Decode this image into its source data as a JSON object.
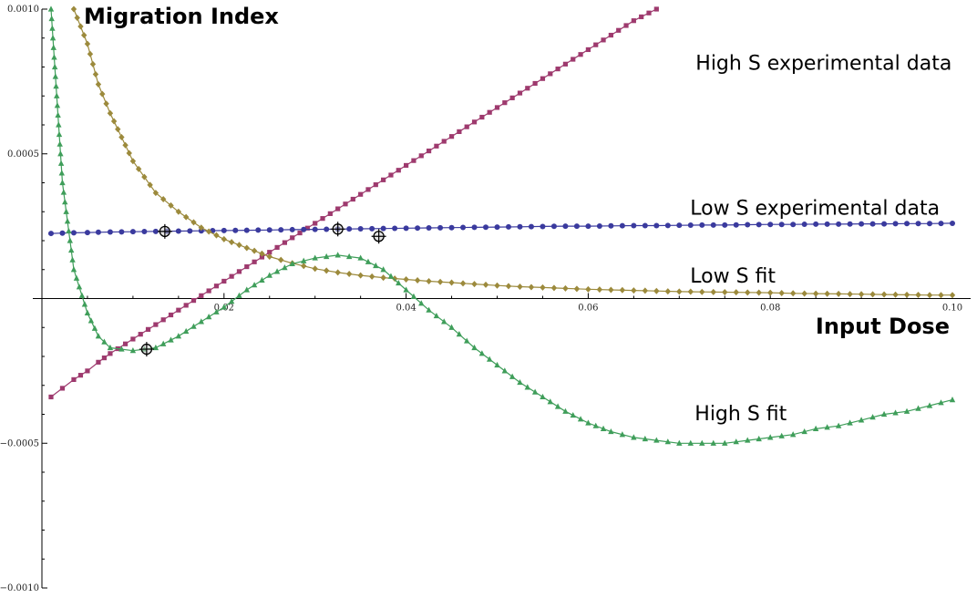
{
  "chart_data": {
    "type": "line",
    "ylabel": "Migration Index",
    "xlabel": "Input Dose",
    "xlim": [
      0.0,
      0.1
    ],
    "ylim": [
      -0.001,
      0.001
    ],
    "x_ticks": [
      0.02,
      0.04,
      0.06,
      0.08,
      0.1
    ],
    "x_tick_labels": [
      "0.02",
      "0.04",
      "0.06",
      "0.08",
      "0.10"
    ],
    "y_ticks": [
      -0.001,
      -0.0005,
      0.0005,
      0.001
    ],
    "y_tick_labels": [
      "−0.0010",
      "−0.0005",
      "0.0005",
      "0.0010"
    ],
    "grid": false,
    "x": [
      0.001,
      0.00225,
      0.0035,
      0.005,
      0.0062,
      0.0075,
      0.01,
      0.0125,
      0.015,
      0.0175,
      0.02,
      0.0225,
      0.025,
      0.0275,
      0.03,
      0.0325,
      0.035,
      0.0375,
      0.04,
      0.0425,
      0.045,
      0.0475,
      0.05,
      0.0525,
      0.055,
      0.0575,
      0.06,
      0.0625,
      0.065,
      0.0675,
      0.07,
      0.0725,
      0.075,
      0.0775,
      0.08,
      0.0825,
      0.085,
      0.0875,
      0.09,
      0.0925,
      0.095,
      0.0975,
      0.1
    ],
    "series": [
      {
        "name": "High S experimental data",
        "color": "#9e3a6e",
        "marker": "square",
        "values": [
          -0.00034,
          -0.00031,
          -0.00028,
          -0.00025,
          -0.00022,
          -0.00019,
          -0.00014,
          -9e-05,
          -4e-05,
          1e-05,
          6e-05,
          0.00011,
          0.00016,
          0.00021,
          0.00026,
          0.00031,
          0.00036,
          0.00041,
          0.00046,
          0.00051,
          0.00056,
          0.00061,
          0.00066,
          0.00071,
          0.00076,
          0.00081,
          0.00086,
          0.00091,
          0.00096,
          0.001,
          null,
          null,
          null,
          null,
          null,
          null,
          null,
          null,
          null,
          null,
          null,
          null,
          null
        ]
      },
      {
        "name": "Low S experimental data",
        "color": "#3a3a9e",
        "marker": "circle",
        "values": [
          0.000225,
          0.000226,
          0.000227,
          0.000228,
          0.000229,
          0.00023,
          0.000231,
          0.000232,
          0.000233,
          0.000234,
          0.000235,
          0.000236,
          0.000237,
          0.000238,
          0.000239,
          0.00024,
          0.000241,
          0.000242,
          0.000243,
          0.000244,
          0.000245,
          0.000246,
          0.000247,
          0.000248,
          0.000249,
          0.00025,
          0.00025,
          0.000251,
          0.000252,
          0.000252,
          0.000253,
          0.000254,
          0.000254,
          0.000255,
          0.000256,
          0.000256,
          0.000257,
          0.000257,
          0.000258,
          0.000258,
          0.000259,
          0.000259,
          0.00026
        ]
      },
      {
        "name": "Low S fit",
        "color": "#9c8a3c",
        "marker": "diamond",
        "values": [
          null,
          null,
          0.001,
          0.00088,
          0.00074,
          0.00064,
          0.000475,
          0.000365,
          0.0003,
          0.000245,
          0.000205,
          0.000175,
          0.000145,
          0.000122,
          0.000103,
          9e-05,
          8e-05,
          7.2e-05,
          6.6e-05,
          6e-05,
          5.5e-05,
          5e-05,
          4.5e-05,
          4.1e-05,
          3.8e-05,
          3.5e-05,
          3.2e-05,
          3e-05,
          2.8e-05,
          2.6e-05,
          2.4e-05,
          2.3e-05,
          2.2e-05,
          2.1e-05,
          2e-05,
          1.8e-05,
          1.7e-05,
          1.6e-05,
          1.5e-05,
          1.4e-05,
          1.3e-05,
          1.2e-05,
          1.2e-05
        ]
      },
      {
        "name": "High S fit",
        "color": "#3f9e5a",
        "marker": "triangle",
        "values": [
          0.001,
          0.0004,
          0.0001,
          -5e-05,
          -0.00013,
          -0.00017,
          -0.00018,
          -0.00017,
          -0.00013,
          -8e-05,
          -3e-05,
          3e-05,
          8e-05,
          0.00012,
          0.00014,
          0.00015,
          0.00014,
          0.0001,
          3e-05,
          -4e-05,
          -0.0001,
          -0.00017,
          -0.00023,
          -0.00029,
          -0.00034,
          -0.00039,
          -0.00043,
          -0.00046,
          -0.00048,
          -0.00049,
          -0.0005,
          -0.0005,
          -0.0005,
          -0.00049,
          -0.00048,
          -0.00047,
          -0.00045,
          -0.00044,
          -0.00042,
          -0.0004,
          -0.00039,
          -0.00037,
          -0.00035
        ]
      }
    ],
    "intersections": [
      {
        "x": 0.0135,
        "y": 0.000232
      },
      {
        "x": 0.0325,
        "y": 0.00024
      },
      {
        "x": 0.037,
        "y": 0.000215
      },
      {
        "x": 0.0115,
        "y": -0.000175
      }
    ],
    "annotations": [
      {
        "text": "High S experimental data",
        "x": 0.0718,
        "y": 0.00079
      },
      {
        "text": "Low S experimental data",
        "x": 0.0712,
        "y": 0.00029
      },
      {
        "text": "Low S fit",
        "x": 0.0712,
        "y": 5.5e-05
      },
      {
        "text": "High S fit",
        "x": 0.0717,
        "y": -0.00042
      }
    ]
  }
}
